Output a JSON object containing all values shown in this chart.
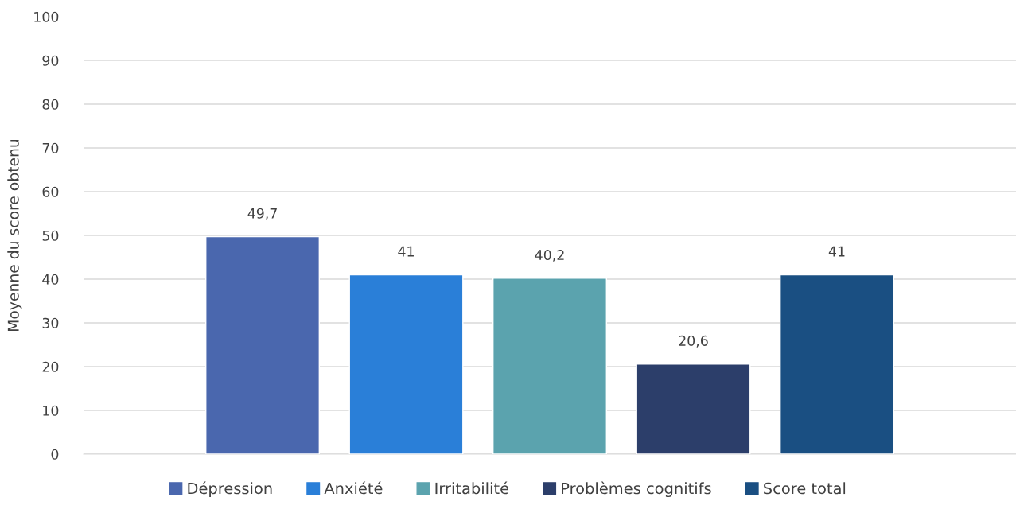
{
  "chart_data": {
    "type": "bar",
    "ylabel": "Moyenne du score obtenu",
    "categories": [
      null
    ],
    "series": [
      {
        "name": "Dépression",
        "color": "#4a67ae",
        "values": [
          49.7
        ],
        "value_labels": [
          "49,7"
        ]
      },
      {
        "name": "Anxiété",
        "color": "#2a7fd8",
        "values": [
          41
        ],
        "value_labels": [
          "41"
        ]
      },
      {
        "name": "Irritabilité",
        "color": "#5ba3ae",
        "values": [
          40.2
        ],
        "value_labels": [
          "40,2"
        ]
      },
      {
        "name": "Problèmes cognitifs",
        "color": "#2c3e6a",
        "values": [
          20.6
        ],
        "value_labels": [
          "20,6"
        ]
      },
      {
        "name": "Score total",
        "color": "#1a4f82",
        "values": [
          41
        ],
        "value_labels": [
          "41"
        ]
      }
    ],
    "ylim": [
      0,
      100
    ],
    "yticks": [
      0,
      10,
      20,
      30,
      40,
      50,
      60,
      70,
      80,
      90,
      100
    ],
    "grid": "y",
    "legend": "bottom",
    "tick_labels": "y"
  }
}
